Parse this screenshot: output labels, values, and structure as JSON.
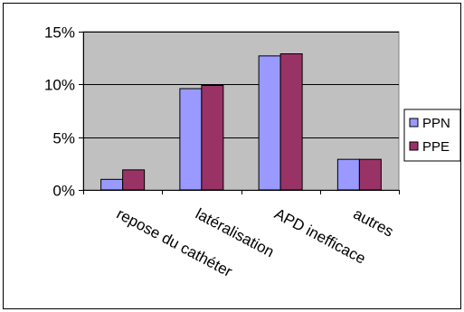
{
  "chart_data": {
    "type": "bar",
    "categories": [
      "repose du cathéter",
      "latéralisation",
      "APD inefficace",
      "autres"
    ],
    "series": [
      {
        "name": "PPN",
        "values": [
          1.0,
          9.6,
          12.7,
          2.9
        ],
        "color": "#9999ff"
      },
      {
        "name": "PPE",
        "values": [
          1.9,
          9.9,
          12.9,
          2.9
        ],
        "color": "#993366"
      }
    ],
    "y_ticks": [
      "0%",
      "5%",
      "10%",
      "15%"
    ],
    "y_tick_values": [
      0,
      5,
      10,
      15
    ],
    "ylim": [
      0,
      15
    ],
    "y_unit": "%",
    "grid": true,
    "plot_background": "#c0c0c0",
    "legend_position": "right",
    "title": "",
    "xlabel": "",
    "ylabel": ""
  }
}
